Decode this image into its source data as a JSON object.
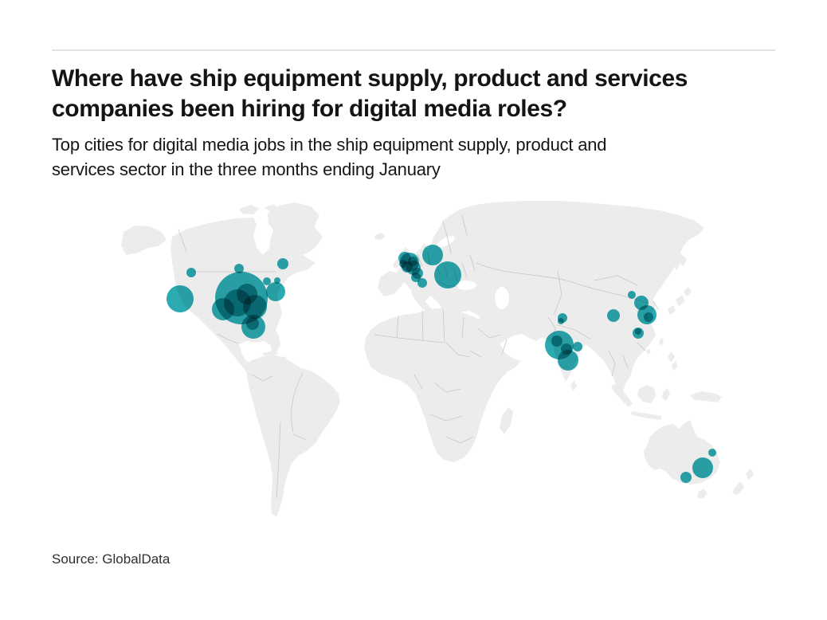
{
  "header": {
    "title": "Where have ship equipment supply, product and services companies been hiring for digital media roles?",
    "title_lines": [
      "Where have ship equipment supply, product and services",
      "companies been hiring for digital media roles?"
    ],
    "subtitle": "Top cities for digital media jobs in the ship equipment supply, product and services sector in the three months ending January",
    "subtitle_lines": [
      "Top cities for digital media jobs in the ship equipment supply, product and",
      "services sector in the three months ending January"
    ]
  },
  "footer": {
    "source": "Source: GlobalData"
  },
  "chart_data": {
    "type": "scatter",
    "subtype": "world-bubble-map",
    "title": "Where have ship equipment supply, product and services companies been hiring for digital media roles?",
    "subtitle": "Top cities for digital media jobs in the ship equipment supply, product and services sector in the three months ending January",
    "source": "Source: GlobalData",
    "legend": "none",
    "axes": "none (geographic projection)",
    "bubble_color": "#1AA3AB",
    "bubble_blend": "multiply (overlaps render darker teal to near-black)",
    "land_color": "#ECECEC",
    "border_color": "#C7C7C7",
    "background_color": "#FFFFFF",
    "bubble_format": "[x_px, y_px, radius_px] in 1038x778 image coordinates; radius encodes relative job-hiring volume (no numeric labels shown)",
    "clusters": [
      {
        "region": "north-america",
        "bubbles": [
          [
            240,
            342,
            6
          ],
          [
            300,
            337,
            6
          ],
          [
            226,
            375,
            17
          ],
          [
            303,
            374,
            33
          ],
          [
            298,
            380,
            17
          ],
          [
            310,
            369,
            13
          ],
          [
            320,
            385,
            15
          ],
          [
            280,
            388,
            14
          ],
          [
            318,
            410,
            15
          ],
          [
            317,
            406,
            8
          ],
          [
            346,
            366,
            12
          ],
          [
            335,
            353,
            5
          ],
          [
            348,
            352,
            4
          ],
          [
            355,
            331,
            7
          ]
        ]
      },
      {
        "region": "europe",
        "bubbles": [
          [
            514,
            329,
            12
          ],
          [
            508,
            324,
            8
          ],
          [
            519,
            336,
            9
          ],
          [
            511,
            335,
            7
          ],
          [
            524,
            343,
            7
          ],
          [
            518,
            328,
            6
          ],
          [
            506,
            331,
            5
          ],
          [
            522,
            348,
            6
          ],
          [
            530,
            355,
            6
          ],
          [
            543,
            320,
            13
          ],
          [
            562,
            345,
            17
          ]
        ]
      },
      {
        "region": "india",
        "bubbles": [
          [
            702,
            433,
            18
          ],
          [
            699,
            428,
            7
          ],
          [
            711,
            438,
            7
          ],
          [
            713,
            452,
            13
          ],
          [
            725,
            435,
            6
          ],
          [
            706,
            399,
            6
          ],
          [
            704,
            403,
            4
          ]
        ]
      },
      {
        "region": "east-asia",
        "bubbles": [
          [
            793,
            370,
            5
          ],
          [
            805,
            380,
            9
          ],
          [
            812,
            395,
            12
          ],
          [
            814,
            398,
            6
          ],
          [
            770,
            396,
            8
          ],
          [
            801,
            418,
            7
          ],
          [
            801,
            416,
            4
          ]
        ]
      },
      {
        "region": "australia",
        "bubbles": [
          [
            894,
            568,
            5
          ],
          [
            882,
            587,
            13
          ],
          [
            861,
            599,
            7
          ]
        ]
      }
    ]
  }
}
